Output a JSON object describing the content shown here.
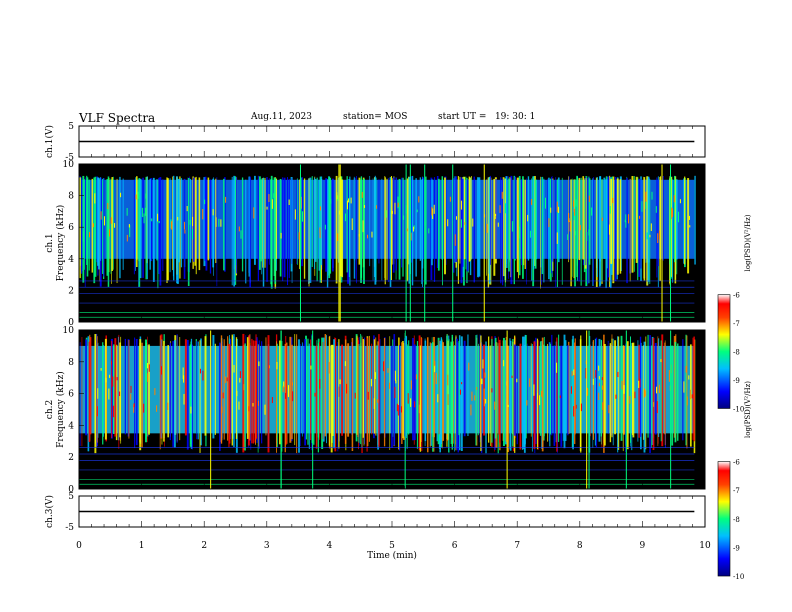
{
  "header": {
    "title": "VLF Spectra",
    "date": "Aug.11, 2023",
    "station": "station= MOS",
    "start": "start UT =   19: 30: 1"
  },
  "chart_data": {
    "type": "heatmap",
    "xlabel": "Time (min)",
    "xlim": [
      0,
      10
    ],
    "xticks": [
      "0",
      "1",
      "2",
      "3",
      "4",
      "5",
      "6",
      "7",
      "8",
      "9",
      "10"
    ],
    "data_end_min": 9.83,
    "panels": [
      {
        "id": "ch1-waveform",
        "type": "line",
        "ylabel": "ch.1(V)",
        "ylim": [
          -5,
          5
        ],
        "yticks": [
          "5",
          "-5"
        ],
        "level": 0
      },
      {
        "id": "ch1-spectrogram",
        "type": "heatmap",
        "ylabel": "ch.1\nFrequency (kHz)",
        "ylim": [
          0,
          10
        ],
        "yticks": [
          "0",
          "2",
          "4",
          "6",
          "8",
          "10"
        ],
        "band_khz": [
          4,
          9
        ],
        "colorbar": {
          "label": "log(PSD)(V²/Hz)",
          "range": [
            -10,
            -6
          ],
          "ticks": [
            "-6",
            "-7",
            "-8",
            "-9",
            "-10"
          ]
        }
      },
      {
        "id": "ch2-spectrogram",
        "type": "heatmap",
        "ylabel": "ch.2\nFrequency (kHz)",
        "ylim": [
          0,
          10
        ],
        "yticks": [
          "0",
          "2",
          "4",
          "6",
          "8",
          "10"
        ],
        "band_khz": [
          3.5,
          9
        ],
        "colorbar": {
          "label": "log(PSD)(V²/Hz)",
          "range": [
            -10,
            -6
          ],
          "ticks": [
            "-6",
            "-7",
            "-8",
            "-9",
            "-10"
          ]
        }
      },
      {
        "id": "ch3-waveform",
        "type": "line",
        "ylabel": "ch.3(V)",
        "ylim": [
          -5,
          5
        ],
        "yticks": [
          "5",
          "-5"
        ],
        "level": 0
      }
    ],
    "colors": {
      "cmap": [
        "#000080",
        "#0000ff",
        "#00bfff",
        "#00ff7f",
        "#ffff00",
        "#ff8000",
        "#ff0000",
        "#ffffff"
      ]
    }
  }
}
